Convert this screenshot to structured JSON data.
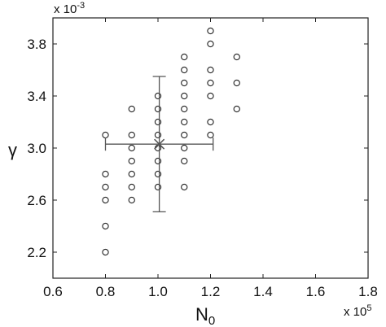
{
  "chart_data": {
    "type": "scatter",
    "title": "",
    "xlabel": "N",
    "xlabel_sub": "0",
    "ylabel": "γ",
    "x_multiplier": {
      "base": "x 10",
      "exp": "5"
    },
    "y_multiplier": {
      "base": "x 10",
      "exp": "-3"
    },
    "xlim": [
      0.6,
      1.8
    ],
    "ylim": [
      2.0,
      4.0
    ],
    "xticks": [
      0.6,
      0.8,
      1.0,
      1.2,
      1.4,
      1.6,
      1.8
    ],
    "xtick_labels": [
      "0.6",
      "0.8",
      "1.0",
      "1.2",
      "1.4",
      "1.6",
      "1.8"
    ],
    "yticks": [
      2.2,
      2.6,
      3.0,
      3.4,
      3.8
    ],
    "ytick_labels": [
      "2.2",
      "2.6",
      "3.0",
      "3.4",
      "3.8"
    ],
    "grid": false,
    "marker": "circle",
    "points": [
      [
        0.8,
        2.2
      ],
      [
        0.8,
        2.4
      ],
      [
        0.8,
        2.6
      ],
      [
        0.8,
        2.7
      ],
      [
        0.8,
        2.8
      ],
      [
        0.8,
        3.1
      ],
      [
        0.9,
        2.6
      ],
      [
        0.9,
        2.7
      ],
      [
        0.9,
        2.8
      ],
      [
        0.9,
        2.9
      ],
      [
        0.9,
        3.0
      ],
      [
        0.9,
        3.1
      ],
      [
        0.9,
        3.3
      ],
      [
        1.0,
        2.7
      ],
      [
        1.0,
        2.8
      ],
      [
        1.0,
        2.9
      ],
      [
        1.0,
        3.0
      ],
      [
        1.0,
        3.1
      ],
      [
        1.0,
        3.2
      ],
      [
        1.0,
        3.3
      ],
      [
        1.0,
        3.4
      ],
      [
        1.1,
        2.7
      ],
      [
        1.1,
        2.9
      ],
      [
        1.1,
        3.0
      ],
      [
        1.1,
        3.1
      ],
      [
        1.1,
        3.2
      ],
      [
        1.1,
        3.3
      ],
      [
        1.1,
        3.4
      ],
      [
        1.1,
        3.5
      ],
      [
        1.1,
        3.6
      ],
      [
        1.1,
        3.7
      ],
      [
        1.2,
        3.1
      ],
      [
        1.2,
        3.2
      ],
      [
        1.2,
        3.4
      ],
      [
        1.2,
        3.5
      ],
      [
        1.2,
        3.6
      ],
      [
        1.2,
        3.8
      ],
      [
        1.2,
        3.9
      ],
      [
        1.3,
        3.3
      ],
      [
        1.3,
        3.5
      ],
      [
        1.3,
        3.7
      ]
    ],
    "mean_marker": {
      "x": 1.005,
      "y": 3.03,
      "symbol": "x"
    },
    "error_bars": {
      "x_range": [
        0.8,
        1.21
      ],
      "y_range": [
        2.51,
        3.55
      ]
    },
    "colors": {
      "marker": "#222222",
      "error_bar": "#555555",
      "axis": "#222222"
    }
  }
}
